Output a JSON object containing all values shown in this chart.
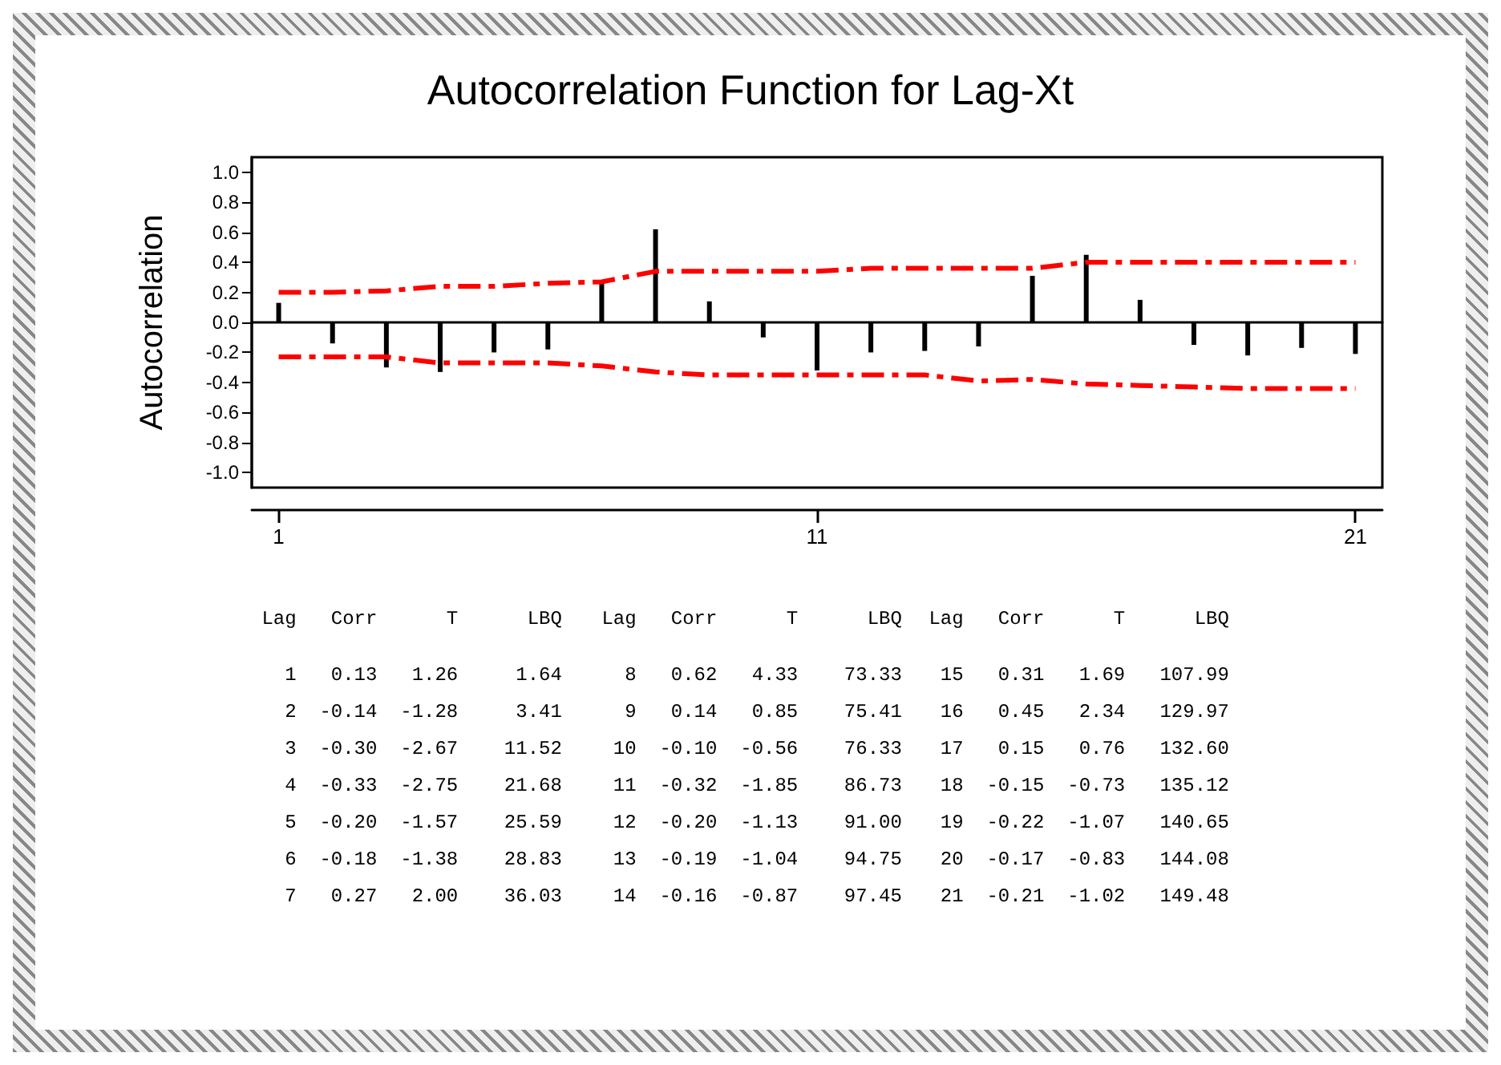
{
  "chart_data": [
    {
      "type": "bar",
      "title": "Autocorrelation Function for Lag-Xt",
      "ylabel": "Autocorrelation",
      "x": [
        1,
        2,
        3,
        4,
        5,
        6,
        7,
        8,
        9,
        10,
        11,
        12,
        13,
        14,
        15,
        16,
        17,
        18,
        19,
        20,
        21
      ],
      "xlim": [
        0.5,
        21.5
      ],
      "xticks": [
        1,
        11,
        21
      ],
      "ylim": [
        -1.1,
        1.1
      ],
      "yticks": [
        {
          "value": -1,
          "label": "-1.0"
        },
        {
          "value": -0.8,
          "label": "-0.8"
        },
        {
          "value": -0.6,
          "label": "-0.6"
        },
        {
          "value": -0.4,
          "label": "-0.4"
        },
        {
          "value": -0.2,
          "label": "-0.2"
        },
        {
          "value": 0,
          "label": "0.0"
        },
        {
          "value": 0.2,
          "label": "0.2"
        },
        {
          "value": 0.4,
          "label": "0.4"
        },
        {
          "value": 0.6,
          "label": "0.6"
        },
        {
          "value": 0.8,
          "label": "0.8"
        },
        {
          "value": 1,
          "label": "1.0"
        }
      ],
      "marker": "none",
      "series": [
        {
          "type": "bar",
          "color": "#000000",
          "values": [
            0.13,
            -0.14,
            -0.3,
            -0.33,
            -0.2,
            -0.18,
            0.27,
            0.62,
            0.14,
            -0.1,
            -0.32,
            -0.2,
            -0.19,
            -0.16,
            0.31,
            0.45,
            0.15,
            -0.15,
            -0.22,
            -0.17,
            -0.21
          ]
        },
        {
          "type": "line",
          "color": "#ff0000",
          "line_style": "dashed",
          "values": [
            0.2,
            0.2,
            0.21,
            0.24,
            0.24,
            0.26,
            0.27,
            0.34,
            0.34,
            0.34,
            0.34,
            0.36,
            0.36,
            0.36,
            0.36,
            0.4,
            0.4,
            0.4,
            0.4,
            0.4,
            0.4
          ]
        },
        {
          "type": "line",
          "color": "#ff0000",
          "line_style": "dashed",
          "values": [
            -0.23,
            -0.23,
            -0.23,
            -0.27,
            -0.27,
            -0.27,
            -0.29,
            -0.33,
            -0.35,
            -0.35,
            -0.35,
            -0.35,
            -0.35,
            -0.39,
            -0.38,
            -0.41,
            -0.42,
            -0.43,
            -0.44,
            -0.44,
            -0.44
          ]
        }
      ]
    },
    {
      "type": "other",
      "annotations": [
        "Lag Corr T LBQ",
        "Lag Corr T LBQ",
        "Lag Corr T LBQ",
        "1 0.13 1.26 1.64",
        "2 -0.14 -1.28 3.41",
        "3 -0.30 -2.67 11.52",
        "4 -0.33 -2.75 21.68",
        "5 -0.20 -1.57 25.59",
        "6 -0.18 -1.38 28.83",
        "7 0.27 2.00 36.03",
        "8 0.62 4.33 73.33",
        "9 0.14 0.85 75.41",
        "10 -0.10 -0.56 76.33",
        "11 -0.32 -1.85 86.73",
        "12 -0.20 -1.13 91.00",
        "13 -0.19 -1.04 94.75",
        "14 -0.16 -0.87 97.45",
        "15 0.31 1.69 107.99",
        "16 0.45 2.34 129.97",
        "17 0.15 0.76 132.60",
        "18 -0.15 -0.73 135.12",
        "19 -0.22 -1.07 140.65",
        "20 -0.17 -0.83 144.08",
        "21 -0.21 -1.02 149.48"
      ]
    }
  ]
}
